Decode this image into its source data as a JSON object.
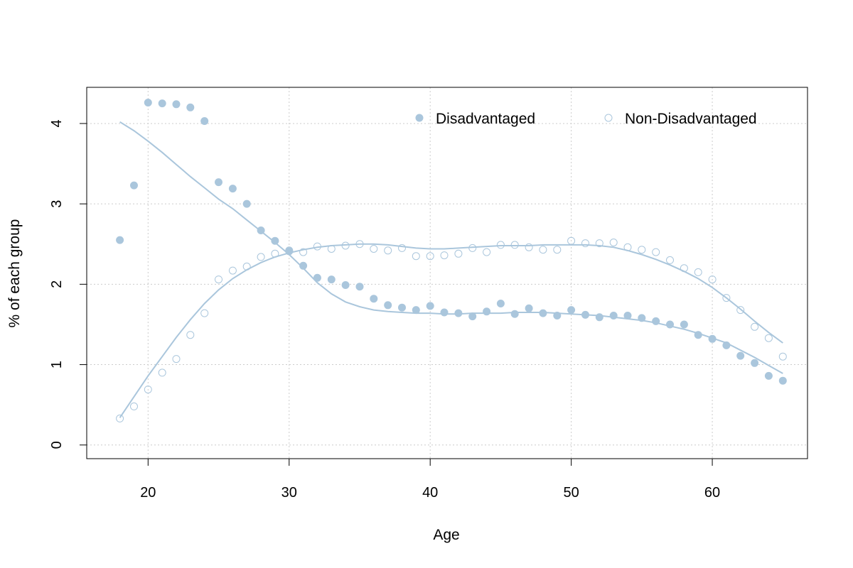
{
  "chart_data": {
    "type": "scatter",
    "title": "",
    "xlabel": "Age",
    "ylabel": "% of each group",
    "xlim": [
      15.65,
      66.75
    ],
    "ylim": [
      -0.17,
      4.45
    ],
    "xticks": [
      20,
      30,
      40,
      50,
      60
    ],
    "yticks": [
      0,
      1,
      2,
      3,
      4
    ],
    "grid": true,
    "legend_position": "top-right",
    "colors": {
      "series": "#aac6dc",
      "axis": "#000000",
      "grid": "#cccccc"
    },
    "x": [
      18,
      19,
      20,
      21,
      22,
      23,
      24,
      25,
      26,
      27,
      28,
      29,
      30,
      31,
      32,
      33,
      34,
      35,
      36,
      37,
      38,
      39,
      40,
      41,
      42,
      43,
      44,
      45,
      46,
      47,
      48,
      49,
      50,
      51,
      52,
      53,
      54,
      55,
      56,
      57,
      58,
      59,
      60,
      61,
      62,
      63,
      64,
      65
    ],
    "series": [
      {
        "name": "Disadvantaged",
        "marker": "filled-circle",
        "values": [
          2.55,
          3.23,
          4.26,
          4.25,
          4.24,
          4.2,
          4.03,
          3.27,
          3.19,
          3.0,
          2.67,
          2.54,
          2.41,
          2.23,
          2.08,
          2.06,
          1.99,
          1.97,
          1.82,
          1.74,
          1.71,
          1.68,
          1.73,
          1.65,
          1.64,
          1.6,
          1.66,
          1.76,
          1.63,
          1.7,
          1.64,
          1.61,
          1.68,
          1.62,
          1.59,
          1.61,
          1.61,
          1.58,
          1.54,
          1.5,
          1.5,
          1.37,
          1.32,
          1.24,
          1.11,
          1.02,
          0.86,
          0.8
        ],
        "trend": [
          4.02,
          3.91,
          3.78,
          3.64,
          3.49,
          3.34,
          3.2,
          3.06,
          2.94,
          2.8,
          2.66,
          2.52,
          2.37,
          2.2,
          2.02,
          1.88,
          1.78,
          1.72,
          1.68,
          1.66,
          1.65,
          1.64,
          1.64,
          1.63,
          1.63,
          1.64,
          1.64,
          1.64,
          1.65,
          1.65,
          1.65,
          1.64,
          1.63,
          1.62,
          1.61,
          1.59,
          1.57,
          1.55,
          1.52,
          1.48,
          1.44,
          1.39,
          1.33,
          1.27,
          1.18,
          1.09,
          0.99,
          0.89
        ]
      },
      {
        "name": "Non-Disadvantaged",
        "marker": "open-circle",
        "values": [
          0.33,
          0.48,
          0.69,
          0.9,
          1.07,
          1.37,
          1.64,
          2.06,
          2.17,
          2.22,
          2.34,
          2.38,
          2.42,
          2.4,
          2.47,
          2.44,
          2.48,
          2.5,
          2.44,
          2.42,
          2.45,
          2.35,
          2.35,
          2.36,
          2.38,
          2.45,
          2.4,
          2.49,
          2.49,
          2.46,
          2.43,
          2.43,
          2.54,
          2.51,
          2.51,
          2.52,
          2.46,
          2.43,
          2.4,
          2.3,
          2.2,
          2.15,
          2.06,
          1.83,
          1.68,
          1.47,
          1.33,
          1.1
        ],
        "trend": [
          0.34,
          0.6,
          0.86,
          1.1,
          1.34,
          1.56,
          1.76,
          1.93,
          2.07,
          2.18,
          2.27,
          2.34,
          2.39,
          2.43,
          2.46,
          2.48,
          2.49,
          2.5,
          2.5,
          2.49,
          2.47,
          2.45,
          2.44,
          2.44,
          2.45,
          2.46,
          2.47,
          2.48,
          2.48,
          2.48,
          2.49,
          2.49,
          2.49,
          2.49,
          2.48,
          2.46,
          2.42,
          2.37,
          2.31,
          2.24,
          2.16,
          2.07,
          1.96,
          1.83,
          1.69,
          1.54,
          1.4,
          1.27
        ]
      }
    ]
  }
}
